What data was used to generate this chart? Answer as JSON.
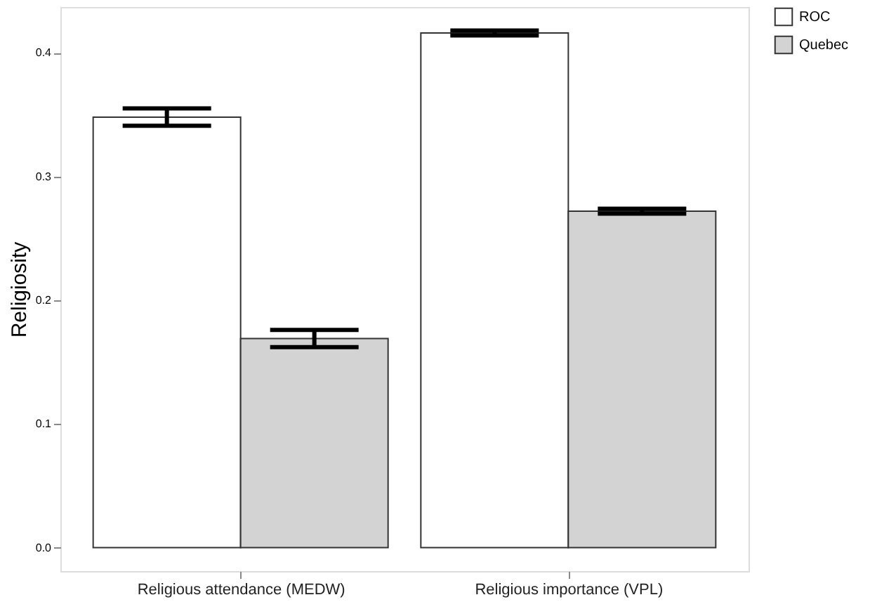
{
  "chart_data": {
    "type": "bar",
    "ylabel": "Religiosity",
    "categories": [
      "Religious attendance (MEDW)",
      "Religious importance (VPL)"
    ],
    "series": [
      {
        "name": "ROC",
        "color": "#ffffff",
        "values": [
          0.348,
          0.416
        ],
        "errors": [
          0.007,
          0.002
        ]
      },
      {
        "name": "Quebec",
        "color": "#d3d3d3",
        "values": [
          0.169,
          0.272
        ],
        "errors": [
          0.007,
          0.002
        ]
      }
    ],
    "ylim": [
      -0.019,
      0.437
    ],
    "yticks": [
      {
        "value": 0,
        "label": "0.0"
      },
      0.1,
      0.2,
      0.3,
      0.4
    ],
    "grid": false,
    "legend": "right"
  }
}
